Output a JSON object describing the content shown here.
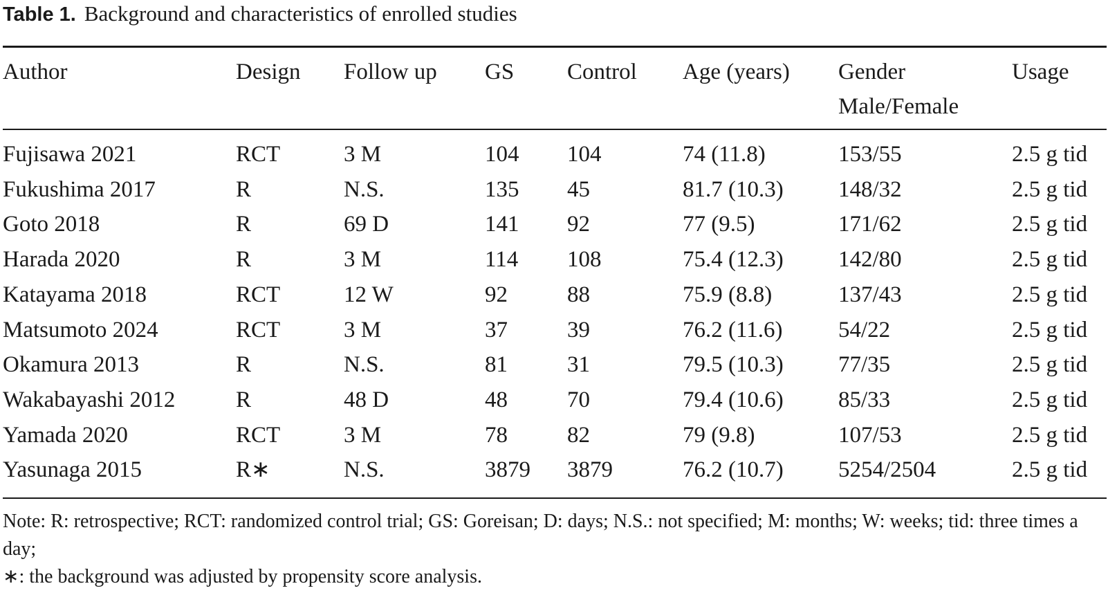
{
  "caption": {
    "label": "Table 1.",
    "text": "Background and characteristics of enrolled studies"
  },
  "table": {
    "headers": [
      "Author",
      "Design",
      "Follow up",
      "GS",
      "Control",
      "Age (years)",
      "Gender",
      "Usage"
    ],
    "header_second_line": {
      "gender": "Male/Female"
    },
    "rows": [
      {
        "author": "Fujisawa 2021",
        "design": "RCT",
        "follow_up": "3 M",
        "gs": "104",
        "control": "104",
        "age": "74 (11.8)",
        "gender": "153/55",
        "usage": "2.5 g tid"
      },
      {
        "author": "Fukushima 2017",
        "design": "R",
        "follow_up": "N.S.",
        "gs": "135",
        "control": "45",
        "age": "81.7 (10.3)",
        "gender": "148/32",
        "usage": "2.5 g tid"
      },
      {
        "author": "Goto 2018",
        "design": "R",
        "follow_up": "69 D",
        "gs": "141",
        "control": "92",
        "age": "77 (9.5)",
        "gender": "171/62",
        "usage": "2.5 g tid"
      },
      {
        "author": "Harada 2020",
        "design": "R",
        "follow_up": "3 M",
        "gs": "114",
        "control": "108",
        "age": "75.4 (12.3)",
        "gender": "142/80",
        "usage": "2.5 g tid"
      },
      {
        "author": "Katayama 2018",
        "design": "RCT",
        "follow_up": "12 W",
        "gs": "92",
        "control": "88",
        "age": "75.9 (8.8)",
        "gender": "137/43",
        "usage": "2.5 g tid"
      },
      {
        "author": "Matsumoto 2024",
        "design": "RCT",
        "follow_up": "3 M",
        "gs": "37",
        "control": "39",
        "age": "76.2 (11.6)",
        "gender": "54/22",
        "usage": "2.5 g tid"
      },
      {
        "author": "Okamura 2013",
        "design": "R",
        "follow_up": "N.S.",
        "gs": "81",
        "control": "31",
        "age": "79.5 (10.3)",
        "gender": "77/35",
        "usage": "2.5 g tid"
      },
      {
        "author": "Wakabayashi 2012",
        "design": "R",
        "follow_up": "48 D",
        "gs": "48",
        "control": "70",
        "age": "79.4 (10.6)",
        "gender": "85/33",
        "usage": "2.5 g tid"
      },
      {
        "author": "Yamada 2020",
        "design": "RCT",
        "follow_up": "3 M",
        "gs": "78",
        "control": "82",
        "age": "79 (9.8)",
        "gender": "107/53",
        "usage": "2.5 g tid"
      },
      {
        "author": "Yasunaga 2015",
        "design": "R∗",
        "follow_up": "N.S.",
        "gs": "3879",
        "control": "3879",
        "age": "76.2 (10.7)",
        "gender": "5254/2504",
        "usage": "2.5 g tid"
      }
    ]
  },
  "notes": {
    "abbreviations": "Note: R: retrospective; RCT: randomized control trial; GS: Goreisan; D: days; N.S.: not specified; M: months; W: weeks; tid: three times a day;",
    "asterisk": "∗: the background was adjusted by propensity score analysis."
  }
}
